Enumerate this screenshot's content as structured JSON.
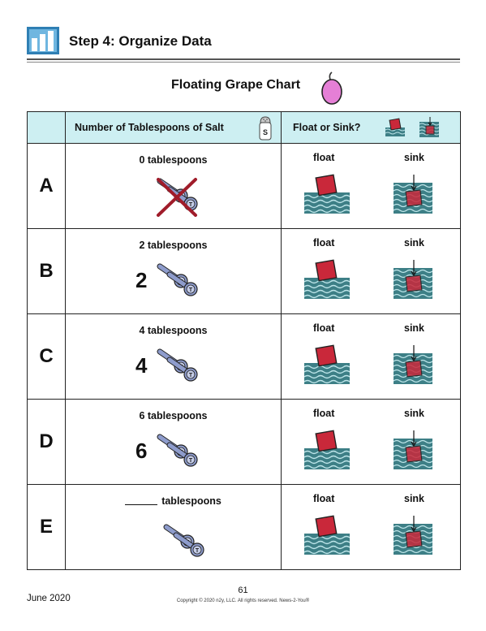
{
  "header": {
    "step_title": "Step 4: Organize Data"
  },
  "chart_title": "Floating Grape Chart",
  "table": {
    "col_salt": "Number of Tablespoons of Salt",
    "col_float_sink": "Float or Sink?",
    "shaker_letter": "S",
    "float_label": "float",
    "sink_label": "sink",
    "spoon_letter": "T",
    "rows": [
      {
        "letter": "A",
        "amount": "0 tablespoons",
        "number": ""
      },
      {
        "letter": "B",
        "amount": "2 tablespoons",
        "number": "2"
      },
      {
        "letter": "C",
        "amount": "4 tablespoons",
        "number": "4"
      },
      {
        "letter": "D",
        "amount": "6 tablespoons",
        "number": "6"
      },
      {
        "letter": "E",
        "amount": "tablespoons",
        "number": ""
      }
    ]
  },
  "footer": {
    "date": "June 2020",
    "page": "61",
    "copyright": "Copyright © 2020 n2y, LLC. All rights reserved. News-2-You®"
  },
  "colors": {
    "header_bg": "#cdeff2",
    "water": "#3d7f86",
    "cube": "#c9283a",
    "spoon": "#8e9ccc",
    "grape": "#e57fd6",
    "logo": "#2f7fb4"
  }
}
